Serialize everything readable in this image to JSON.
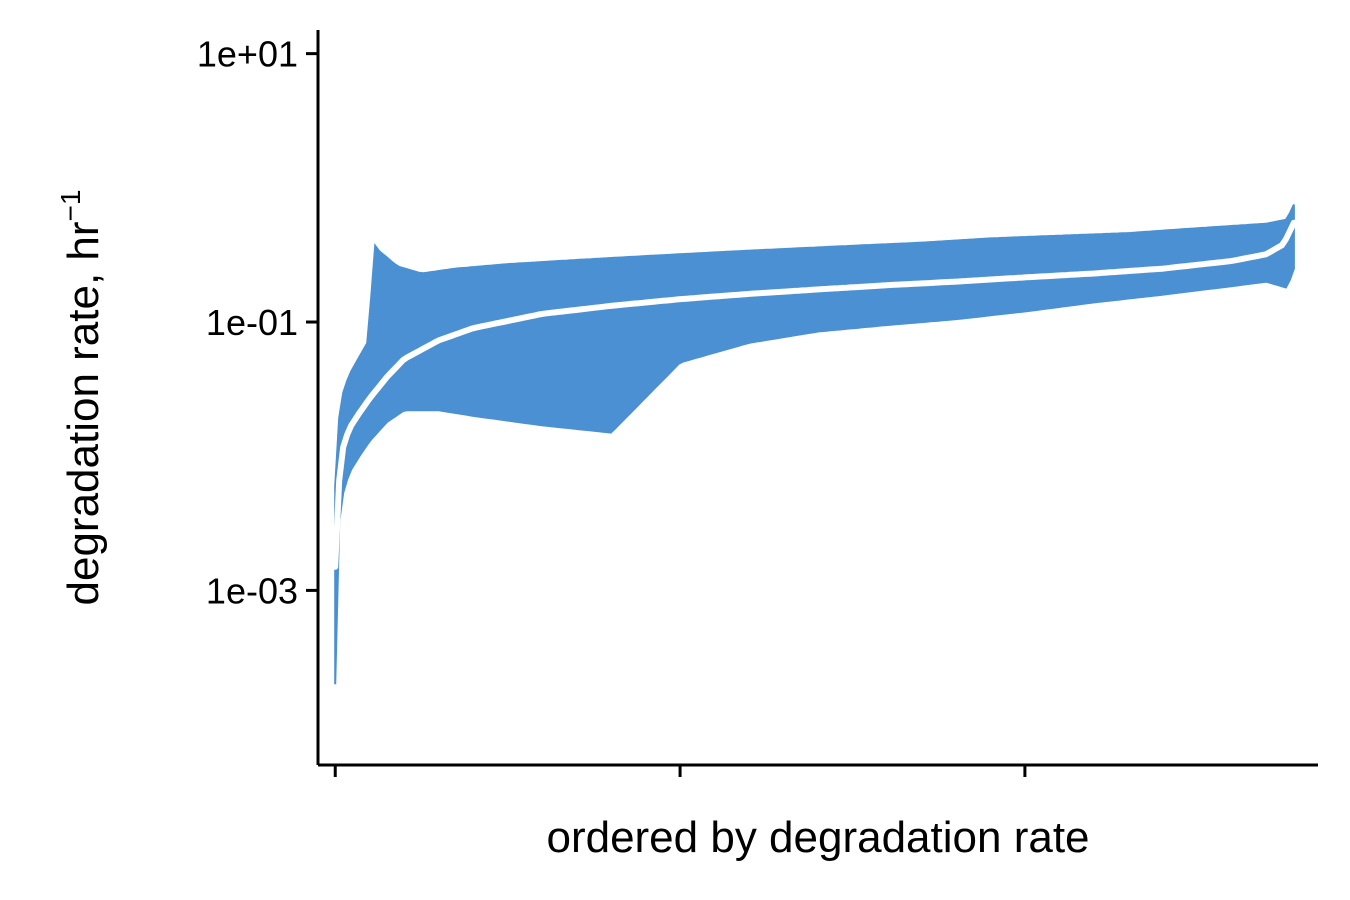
{
  "chart_data": {
    "type": "line",
    "title": "",
    "xlabel": "ordered by degradation rate",
    "ylabel": "degradation rate, hr",
    "ylabel_superscript": "−1",
    "yscale": "log10",
    "ylim": [
      5e-05,
      15
    ],
    "xlim": [
      -0.05,
      2.85
    ],
    "x_ticks": [
      0,
      1,
      2
    ],
    "x_tick_labels": [
      "",
      "",
      ""
    ],
    "y_ticks": [
      0.001,
      0.1,
      10
    ],
    "y_tick_labels": [
      "1e-03",
      "1e-01",
      "1e+01"
    ],
    "grid": false,
    "legend": "none",
    "colors": {
      "band": "#4a90d2",
      "estimate": "#ffffff"
    },
    "series": [
      {
        "role": "upper-bound",
        "x": [
          0.0,
          0.01,
          0.02,
          0.04,
          0.07,
          0.1,
          0.11,
          0.12,
          0.18,
          0.25,
          0.35,
          0.5,
          0.7,
          0.9,
          1.1,
          1.3,
          1.5,
          1.7,
          1.9,
          2.1,
          2.3,
          2.5,
          2.7,
          2.76,
          2.78
        ],
        "values": [
          0.006,
          0.018,
          0.028,
          0.04,
          0.055,
          0.075,
          0.4,
          0.35,
          0.26,
          0.23,
          0.25,
          0.27,
          0.29,
          0.31,
          0.33,
          0.35,
          0.37,
          0.39,
          0.42,
          0.44,
          0.46,
          0.5,
          0.54,
          0.58,
          0.75
        ]
      },
      {
        "role": "estimate",
        "x": [
          0.0,
          0.01,
          0.02,
          0.04,
          0.07,
          0.1,
          0.15,
          0.2,
          0.3,
          0.4,
          0.6,
          0.8,
          1.0,
          1.2,
          1.4,
          1.6,
          1.8,
          2.0,
          2.2,
          2.4,
          2.6,
          2.7,
          2.75,
          2.78
        ],
        "values": [
          0.0015,
          0.006,
          0.011,
          0.016,
          0.021,
          0.027,
          0.039,
          0.053,
          0.073,
          0.09,
          0.115,
          0.132,
          0.148,
          0.162,
          0.175,
          0.188,
          0.2,
          0.215,
          0.23,
          0.25,
          0.285,
          0.32,
          0.38,
          0.55
        ]
      },
      {
        "role": "lower-bound",
        "x": [
          0.0,
          0.01,
          0.02,
          0.04,
          0.07,
          0.1,
          0.15,
          0.2,
          0.3,
          0.4,
          0.6,
          0.8,
          1.0,
          1.2,
          1.4,
          1.6,
          1.8,
          2.0,
          2.2,
          2.4,
          2.6,
          2.7,
          2.76,
          2.78
        ],
        "values": [
          0.0002,
          0.003,
          0.005,
          0.0075,
          0.01,
          0.013,
          0.018,
          0.022,
          0.022,
          0.02,
          0.017,
          0.015,
          0.05,
          0.07,
          0.085,
          0.095,
          0.105,
          0.12,
          0.14,
          0.16,
          0.185,
          0.2,
          0.18,
          0.25
        ]
      }
    ]
  }
}
